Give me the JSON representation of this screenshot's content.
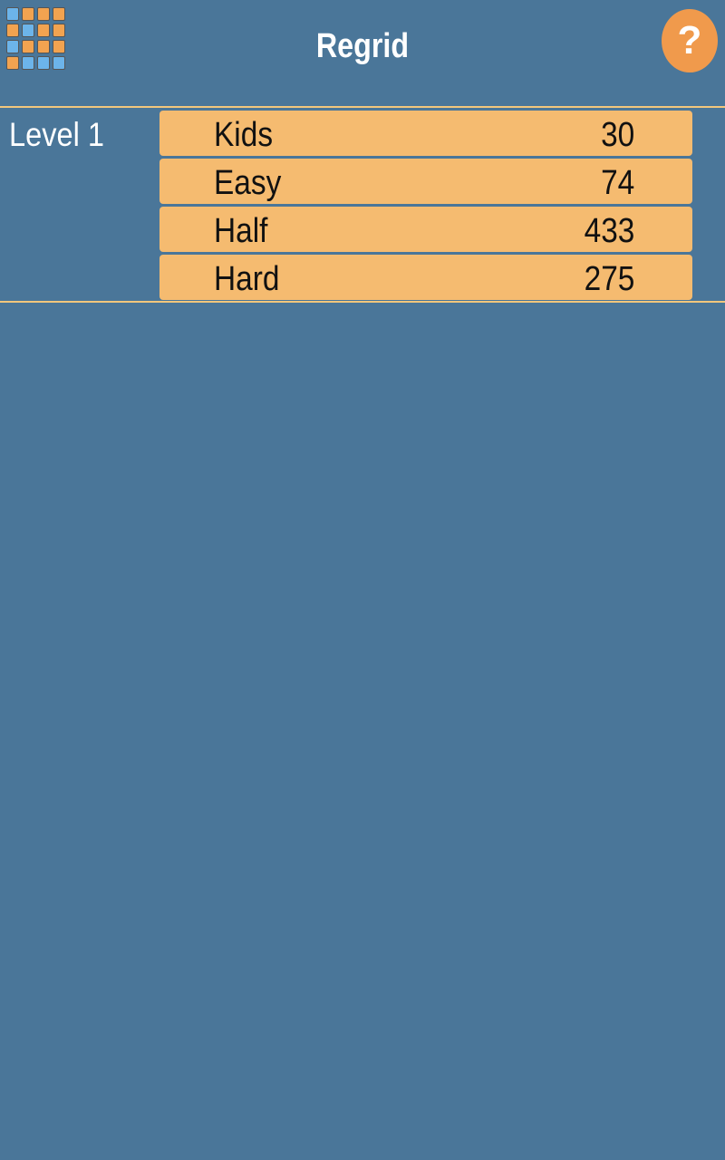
{
  "header": {
    "title": "Regrid",
    "help_icon": "question-mark-icon",
    "logo_icon": "grid-logo-icon",
    "logo_grid": [
      [
        "b",
        "o",
        "o",
        "o"
      ],
      [
        "o",
        "b",
        "o",
        "o"
      ],
      [
        "b",
        "o",
        "o",
        "o"
      ],
      [
        "o",
        "b",
        "b",
        "b"
      ]
    ]
  },
  "colors": {
    "background": "#4a7699",
    "row": "#f5bb70",
    "accent": "#f09a4c",
    "tile_blue": "#6cb4ea",
    "tile_orange": "#f2a350",
    "divider": "#f2c77c"
  },
  "level": {
    "label": "Level 1",
    "items": [
      {
        "name": "Kids",
        "value": "30"
      },
      {
        "name": "Easy",
        "value": "74"
      },
      {
        "name": "Half",
        "value": "433"
      },
      {
        "name": "Hard",
        "value": "275"
      }
    ]
  }
}
